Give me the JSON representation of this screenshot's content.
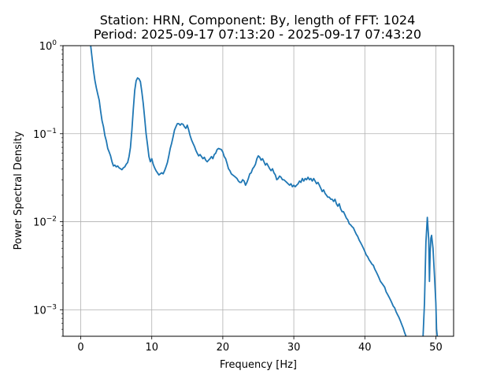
{
  "chart_data": {
    "type": "line",
    "title_line1": "Station: HRN, Component: By, length of FFT: 1024",
    "title_line2": "Period: 2025-09-17 07:13:20 - 2025-09-17 07:43:20",
    "xlabel": "Frequency [Hz]",
    "ylabel": "Power Spectral Density",
    "xlim": [
      -2.5,
      52.5
    ],
    "ylim": [
      0.0005,
      1
    ],
    "yscale": "log",
    "grid": true,
    "x_ticks": [
      0,
      10,
      20,
      30,
      40,
      50
    ],
    "x_tick_labels": [
      "0",
      "10",
      "20",
      "30",
      "40",
      "50"
    ],
    "y_ticks": [
      0.001,
      0.01,
      0.1,
      1
    ],
    "y_tick_labels": [
      {
        "base": "10",
        "exp": "−3"
      },
      {
        "base": "10",
        "exp": "−2"
      },
      {
        "base": "10",
        "exp": "−1"
      },
      {
        "base": "10",
        "exp": "0"
      }
    ],
    "series": [
      {
        "color": "#1f77b4",
        "points": [
          [
            1.4,
            1.0
          ],
          [
            1.6,
            0.72
          ],
          [
            1.8,
            0.52
          ],
          [
            2.0,
            0.4
          ],
          [
            2.2,
            0.33
          ],
          [
            2.4,
            0.28
          ],
          [
            2.6,
            0.24
          ],
          [
            2.8,
            0.18
          ],
          [
            3.0,
            0.14
          ],
          [
            3.2,
            0.12
          ],
          [
            3.4,
            0.095
          ],
          [
            3.6,
            0.083
          ],
          [
            3.8,
            0.068
          ],
          [
            4.0,
            0.062
          ],
          [
            4.2,
            0.056
          ],
          [
            4.4,
            0.048
          ],
          [
            4.6,
            0.043
          ],
          [
            4.8,
            0.044
          ],
          [
            5.0,
            0.042
          ],
          [
            5.2,
            0.043
          ],
          [
            5.4,
            0.041
          ],
          [
            5.6,
            0.04
          ],
          [
            5.8,
            0.039
          ],
          [
            6.0,
            0.041
          ],
          [
            6.2,
            0.042
          ],
          [
            6.4,
            0.045
          ],
          [
            6.6,
            0.047
          ],
          [
            6.8,
            0.055
          ],
          [
            7.0,
            0.07
          ],
          [
            7.2,
            0.11
          ],
          [
            7.4,
            0.19
          ],
          [
            7.6,
            0.31
          ],
          [
            7.8,
            0.4
          ],
          [
            8.0,
            0.43
          ],
          [
            8.2,
            0.42
          ],
          [
            8.4,
            0.39
          ],
          [
            8.6,
            0.3
          ],
          [
            8.8,
            0.22
          ],
          [
            9.0,
            0.15
          ],
          [
            9.2,
            0.1
          ],
          [
            9.4,
            0.075
          ],
          [
            9.6,
            0.055
          ],
          [
            9.8,
            0.048
          ],
          [
            10.0,
            0.052
          ],
          [
            10.2,
            0.045
          ],
          [
            10.4,
            0.041
          ],
          [
            10.6,
            0.038
          ],
          [
            10.8,
            0.036
          ],
          [
            11.0,
            0.034
          ],
          [
            11.2,
            0.035
          ],
          [
            11.4,
            0.036
          ],
          [
            11.6,
            0.035
          ],
          [
            11.8,
            0.038
          ],
          [
            12.0,
            0.042
          ],
          [
            12.2,
            0.047
          ],
          [
            12.4,
            0.056
          ],
          [
            12.6,
            0.068
          ],
          [
            12.8,
            0.078
          ],
          [
            13.0,
            0.092
          ],
          [
            13.2,
            0.11
          ],
          [
            13.4,
            0.12
          ],
          [
            13.6,
            0.13
          ],
          [
            13.8,
            0.13
          ],
          [
            14.0,
            0.125
          ],
          [
            14.2,
            0.13
          ],
          [
            14.4,
            0.128
          ],
          [
            14.6,
            0.12
          ],
          [
            14.8,
            0.115
          ],
          [
            15.0,
            0.125
          ],
          [
            15.2,
            0.11
          ],
          [
            15.4,
            0.095
          ],
          [
            15.6,
            0.085
          ],
          [
            15.8,
            0.078
          ],
          [
            16.0,
            0.072
          ],
          [
            16.2,
            0.065
          ],
          [
            16.4,
            0.06
          ],
          [
            16.6,
            0.056
          ],
          [
            16.8,
            0.058
          ],
          [
            17.0,
            0.055
          ],
          [
            17.2,
            0.052
          ],
          [
            17.4,
            0.054
          ],
          [
            17.6,
            0.05
          ],
          [
            17.8,
            0.048
          ],
          [
            18.0,
            0.05
          ],
          [
            18.2,
            0.052
          ],
          [
            18.4,
            0.055
          ],
          [
            18.6,
            0.052
          ],
          [
            18.8,
            0.058
          ],
          [
            19.0,
            0.06
          ],
          [
            19.2,
            0.066
          ],
          [
            19.4,
            0.068
          ],
          [
            19.6,
            0.067
          ],
          [
            19.8,
            0.066
          ],
          [
            20.0,
            0.062
          ],
          [
            20.2,
            0.055
          ],
          [
            20.4,
            0.052
          ],
          [
            20.6,
            0.046
          ],
          [
            20.8,
            0.04
          ],
          [
            21.0,
            0.038
          ],
          [
            21.2,
            0.035
          ],
          [
            21.4,
            0.034
          ],
          [
            21.6,
            0.033
          ],
          [
            21.8,
            0.032
          ],
          [
            22.0,
            0.031
          ],
          [
            22.2,
            0.029
          ],
          [
            22.4,
            0.028
          ],
          [
            22.6,
            0.028
          ],
          [
            22.8,
            0.03
          ],
          [
            23.0,
            0.029
          ],
          [
            23.2,
            0.026
          ],
          [
            23.4,
            0.028
          ],
          [
            23.6,
            0.031
          ],
          [
            23.8,
            0.035
          ],
          [
            24.0,
            0.036
          ],
          [
            24.2,
            0.04
          ],
          [
            24.4,
            0.042
          ],
          [
            24.6,
            0.045
          ],
          [
            24.8,
            0.052
          ],
          [
            25.0,
            0.056
          ],
          [
            25.2,
            0.054
          ],
          [
            25.4,
            0.05
          ],
          [
            25.6,
            0.052
          ],
          [
            25.8,
            0.048
          ],
          [
            26.0,
            0.044
          ],
          [
            26.2,
            0.046
          ],
          [
            26.4,
            0.043
          ],
          [
            26.6,
            0.04
          ],
          [
            26.8,
            0.038
          ],
          [
            27.0,
            0.04
          ],
          [
            27.2,
            0.036
          ],
          [
            27.4,
            0.034
          ],
          [
            27.6,
            0.03
          ],
          [
            27.8,
            0.031
          ],
          [
            28.0,
            0.033
          ],
          [
            28.2,
            0.032
          ],
          [
            28.4,
            0.03
          ],
          [
            28.6,
            0.03
          ],
          [
            28.8,
            0.029
          ],
          [
            29.0,
            0.028
          ],
          [
            29.2,
            0.027
          ],
          [
            29.4,
            0.026
          ],
          [
            29.6,
            0.027
          ],
          [
            29.8,
            0.025
          ],
          [
            30.0,
            0.026
          ],
          [
            30.2,
            0.025
          ],
          [
            30.4,
            0.026
          ],
          [
            30.6,
            0.027
          ],
          [
            30.8,
            0.029
          ],
          [
            31.0,
            0.028
          ],
          [
            31.2,
            0.031
          ],
          [
            31.4,
            0.029
          ],
          [
            31.6,
            0.031
          ],
          [
            31.8,
            0.03
          ],
          [
            32.0,
            0.032
          ],
          [
            32.2,
            0.03
          ],
          [
            32.4,
            0.031
          ],
          [
            32.6,
            0.029
          ],
          [
            32.8,
            0.031
          ],
          [
            33.0,
            0.029
          ],
          [
            33.2,
            0.027
          ],
          [
            33.4,
            0.028
          ],
          [
            33.6,
            0.026
          ],
          [
            33.8,
            0.024
          ],
          [
            34.0,
            0.022
          ],
          [
            34.2,
            0.023
          ],
          [
            34.4,
            0.021
          ],
          [
            34.6,
            0.02
          ],
          [
            34.8,
            0.019
          ],
          [
            35.0,
            0.019
          ],
          [
            35.2,
            0.018
          ],
          [
            35.4,
            0.018
          ],
          [
            35.6,
            0.017
          ],
          [
            35.8,
            0.018
          ],
          [
            36.0,
            0.016
          ],
          [
            36.2,
            0.015
          ],
          [
            36.4,
            0.016
          ],
          [
            36.6,
            0.014
          ],
          [
            36.8,
            0.013
          ],
          [
            37.0,
            0.013
          ],
          [
            37.2,
            0.012
          ],
          [
            37.4,
            0.011
          ],
          [
            37.6,
            0.0105
          ],
          [
            37.8,
            0.0095
          ],
          [
            38.0,
            0.0092
          ],
          [
            38.2,
            0.0088
          ],
          [
            38.4,
            0.0085
          ],
          [
            38.6,
            0.0078
          ],
          [
            38.8,
            0.0072
          ],
          [
            39.0,
            0.0068
          ],
          [
            39.2,
            0.0062
          ],
          [
            39.4,
            0.0058
          ],
          [
            39.6,
            0.0054
          ],
          [
            39.8,
            0.005
          ],
          [
            40.0,
            0.0046
          ],
          [
            40.2,
            0.0042
          ],
          [
            40.4,
            0.004
          ],
          [
            40.6,
            0.0037
          ],
          [
            40.8,
            0.0035
          ],
          [
            41.0,
            0.0033
          ],
          [
            41.2,
            0.0032
          ],
          [
            41.4,
            0.0029
          ],
          [
            41.6,
            0.0027
          ],
          [
            41.8,
            0.0025
          ],
          [
            42.0,
            0.0023
          ],
          [
            42.2,
            0.0021
          ],
          [
            42.4,
            0.002
          ],
          [
            42.6,
            0.0019
          ],
          [
            42.8,
            0.0018
          ],
          [
            43.0,
            0.0016
          ],
          [
            43.2,
            0.0015
          ],
          [
            43.4,
            0.0014
          ],
          [
            43.6,
            0.0013
          ],
          [
            43.8,
            0.0012
          ],
          [
            44.0,
            0.0011
          ],
          [
            44.2,
            0.00105
          ],
          [
            44.4,
            0.00095
          ],
          [
            44.6,
            0.00088
          ],
          [
            44.8,
            0.00082
          ],
          [
            45.0,
            0.00075
          ],
          [
            45.2,
            0.00068
          ],
          [
            45.4,
            0.00062
          ],
          [
            45.6,
            0.00055
          ],
          [
            45.8,
            0.0005
          ]
        ]
      },
      {
        "color": "#1f77b4",
        "points": [
          [
            48.2,
            0.0005
          ],
          [
            48.4,
            0.0012
          ],
          [
            48.6,
            0.0058
          ],
          [
            48.8,
            0.0112
          ],
          [
            49.0,
            0.0062
          ],
          [
            49.1,
            0.0021
          ],
          [
            49.2,
            0.0045
          ],
          [
            49.3,
            0.0065
          ],
          [
            49.4,
            0.007
          ],
          [
            49.6,
            0.005
          ],
          [
            49.8,
            0.0025
          ],
          [
            50.0,
            0.0012
          ],
          [
            50.1,
            0.0006
          ],
          [
            50.2,
            0.0005
          ]
        ]
      }
    ]
  }
}
